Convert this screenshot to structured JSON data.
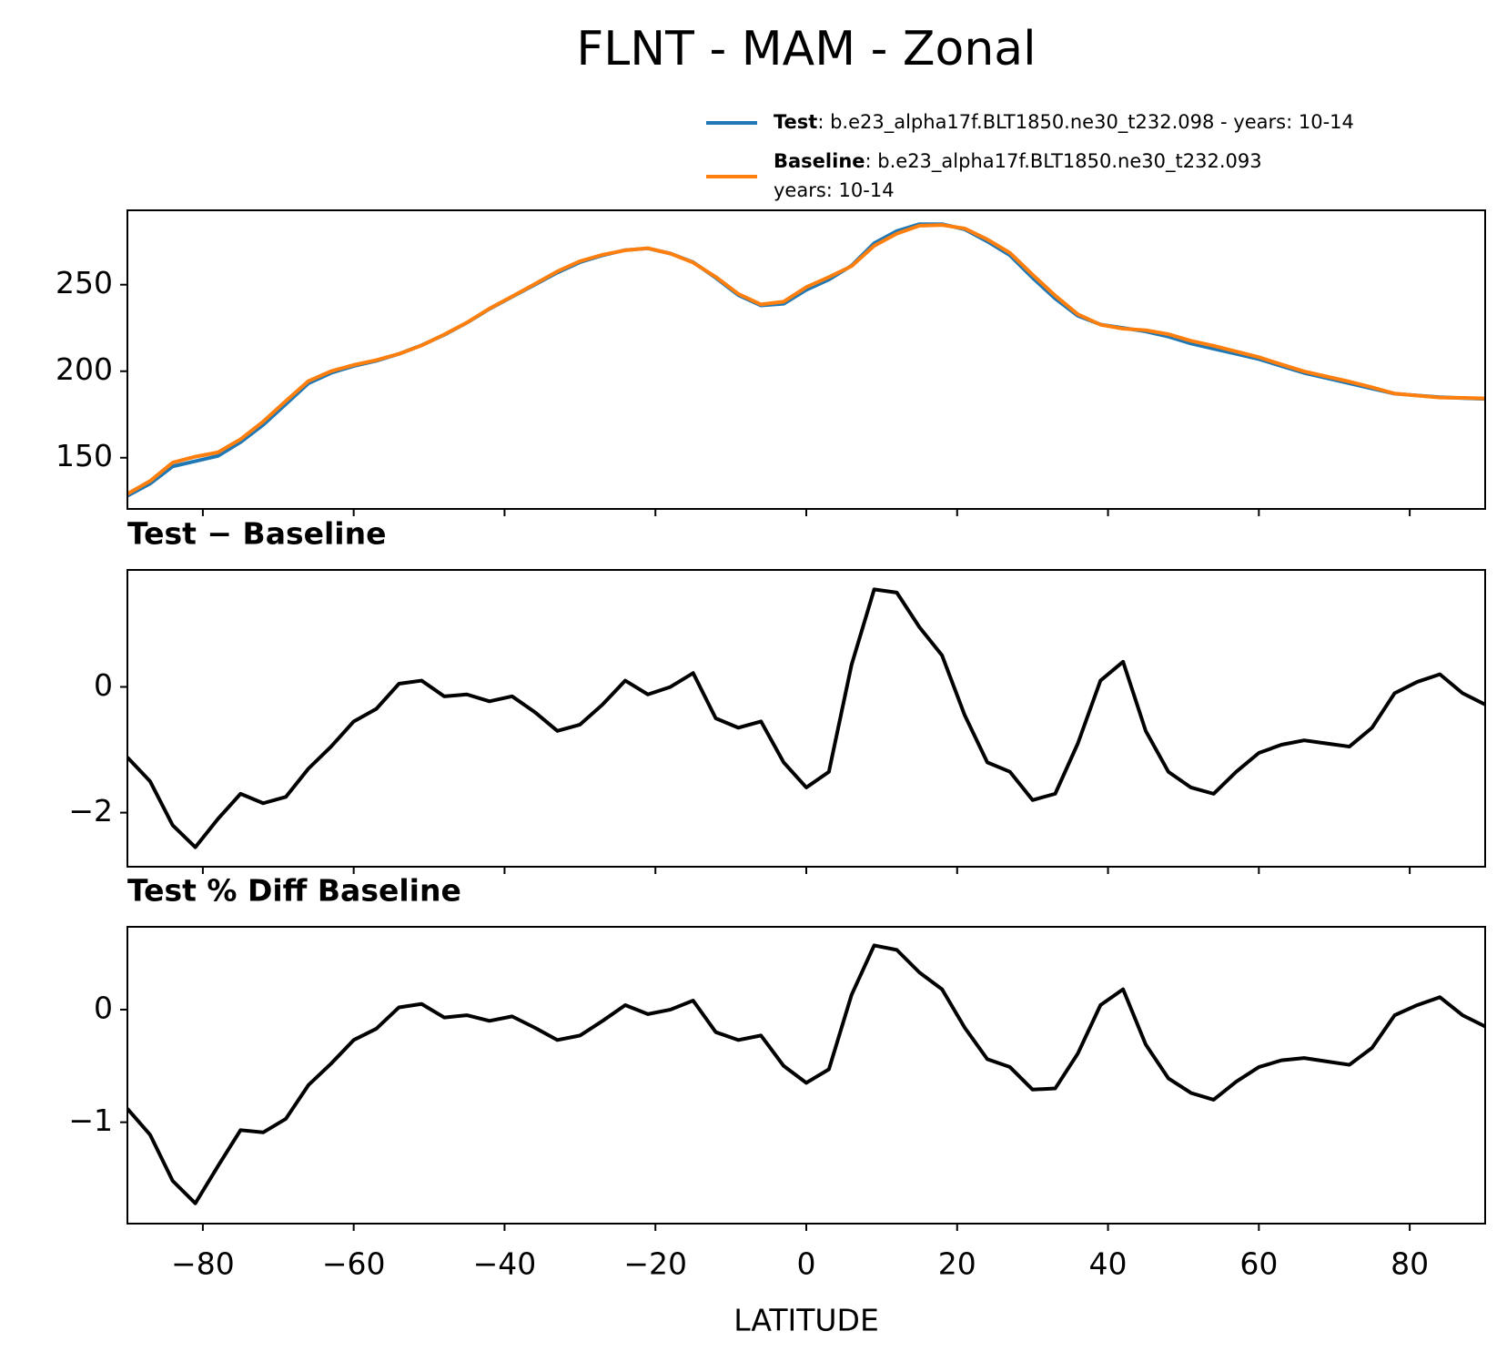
{
  "title": "FLNT - MAM - Zonal",
  "chart_data": [
    {
      "type": "line",
      "x": [
        -90,
        -87,
        -84,
        -81,
        -78,
        -75,
        -72,
        -69,
        -66,
        -63,
        -60,
        -57,
        -54,
        -51,
        -48,
        -45,
        -42,
        -39,
        -36,
        -33,
        -30,
        -27,
        -24,
        -21,
        -18,
        -15,
        -12,
        -9,
        -6,
        -3,
        0,
        3,
        6,
        9,
        12,
        15,
        18,
        21,
        24,
        27,
        30,
        33,
        36,
        39,
        42,
        45,
        48,
        51,
        54,
        57,
        60,
        63,
        66,
        69,
        72,
        75,
        78,
        81,
        84,
        87,
        90
      ],
      "series": [
        {
          "name": "Test",
          "label": ": b.e23_alpha17f.BLT1850.ne30_t232.098 - years: 10-14",
          "color": "#1f77b4",
          "values": [
            128,
            135,
            145,
            148,
            151,
            159,
            169,
            181,
            193,
            199,
            203,
            206,
            210,
            215,
            221,
            228,
            236,
            243,
            250,
            257,
            263,
            267,
            270,
            271,
            268,
            263,
            254,
            244,
            238,
            239,
            247,
            253,
            261,
            274,
            281,
            285,
            285,
            282,
            275,
            267,
            254,
            242,
            232,
            227,
            225,
            223,
            220,
            216,
            213,
            210,
            207,
            203,
            199,
            196,
            193,
            190,
            187,
            186,
            185,
            184.5,
            184
          ]
        },
        {
          "name": "Baseline",
          "label": [
            ": b.e23_alpha17f.BLT1850.ne30_t232.093",
            "years: 10-14"
          ],
          "color": "#ff7f0e",
          "values": [
            129.1,
            136.5,
            147.2,
            150.6,
            153.1,
            160.7,
            170.9,
            182.8,
            194.3,
            200.0,
            203.6,
            206.4,
            210.0,
            214.9,
            221.2,
            228.1,
            236.2,
            243.2,
            250.4,
            257.7,
            263.6,
            267.3,
            269.9,
            271.1,
            268,
            262.8,
            254.5,
            244.7,
            238.6,
            240.2,
            248.6,
            254.4,
            260.7,
            272.5,
            279.5,
            284.1,
            284.5,
            282.5,
            276.2,
            268.4,
            255.8,
            243.7,
            232.9,
            226.9,
            224.6,
            223.7,
            221.4,
            217.6,
            214.7,
            211.4,
            208.1,
            203.9,
            199.9,
            196.9,
            194.0,
            190.7,
            187.1,
            185.9,
            184.8,
            184.6,
            184.3
          ]
        }
      ],
      "xlim": [
        -90,
        90
      ],
      "xticks": [
        -80,
        -60,
        -40,
        -20,
        0,
        20,
        40,
        60,
        80
      ],
      "ylim": [
        120.4,
        293
      ],
      "yticks": [
        150,
        200,
        250
      ]
    },
    {
      "type": "line",
      "title": "Test − Baseline",
      "x": [
        -90,
        -87,
        -84,
        -81,
        -78,
        -75,
        -72,
        -69,
        -66,
        -63,
        -60,
        -57,
        -54,
        -51,
        -48,
        -45,
        -42,
        -39,
        -36,
        -33,
        -30,
        -27,
        -24,
        -21,
        -18,
        -15,
        -12,
        -9,
        -6,
        -3,
        0,
        3,
        6,
        9,
        12,
        15,
        18,
        21,
        24,
        27,
        30,
        33,
        36,
        39,
        42,
        45,
        48,
        51,
        54,
        57,
        60,
        63,
        66,
        69,
        72,
        75,
        78,
        81,
        84,
        87,
        90
      ],
      "series": [
        {
          "color": "#000000",
          "values": [
            -1.12,
            -1.5,
            -2.2,
            -2.55,
            -2.1,
            -1.7,
            -1.85,
            -1.75,
            -1.3,
            -0.95,
            -0.55,
            -0.35,
            0.05,
            0.1,
            -0.15,
            -0.12,
            -0.23,
            -0.15,
            -0.4,
            -0.7,
            -0.6,
            -0.28,
            0.1,
            -0.12,
            0.0,
            0.22,
            -0.5,
            -0.65,
            -0.55,
            -1.2,
            -1.6,
            -1.35,
            0.35,
            1.55,
            1.5,
            0.95,
            0.5,
            -0.45,
            -1.2,
            -1.35,
            -1.8,
            -1.7,
            -0.9,
            0.1,
            0.4,
            -0.7,
            -1.35,
            -1.6,
            -1.7,
            -1.35,
            -1.05,
            -0.92,
            -0.85,
            -0.9,
            -0.95,
            -0.65,
            -0.1,
            0.08,
            0.2,
            -0.1,
            -0.28
          ]
        }
      ],
      "xlim": [
        -90,
        90
      ],
      "xticks": [
        -80,
        -60,
        -40,
        -20,
        0,
        20,
        40,
        60,
        80
      ],
      "ylim": [
        -2.86,
        1.86
      ],
      "yticks": [
        {
          "value": -2,
          "label": "−2"
        },
        0
      ]
    },
    {
      "type": "line",
      "title": "Test % Diff Baseline",
      "xlabel": "LATITUDE",
      "x": [
        -90,
        -87,
        -84,
        -81,
        -78,
        -75,
        -72,
        -69,
        -66,
        -63,
        -60,
        -57,
        -54,
        -51,
        -48,
        -45,
        -42,
        -39,
        -36,
        -33,
        -30,
        -27,
        -24,
        -21,
        -18,
        -15,
        -12,
        -9,
        -6,
        -3,
        0,
        3,
        6,
        9,
        12,
        15,
        18,
        21,
        24,
        27,
        30,
        33,
        36,
        39,
        42,
        45,
        48,
        51,
        54,
        57,
        60,
        63,
        66,
        69,
        72,
        75,
        78,
        81,
        84,
        87,
        90
      ],
      "series": [
        {
          "color": "#000000",
          "values": [
            -0.88,
            -1.11,
            -1.52,
            -1.72,
            -1.39,
            -1.07,
            -1.09,
            -0.97,
            -0.67,
            -0.48,
            -0.27,
            -0.17,
            0.02,
            0.05,
            -0.07,
            -0.05,
            -0.1,
            -0.06,
            -0.16,
            -0.27,
            -0.23,
            -0.1,
            0.04,
            -0.04,
            0.0,
            0.08,
            -0.2,
            -0.27,
            -0.23,
            -0.5,
            -0.65,
            -0.53,
            0.13,
            0.57,
            0.53,
            0.33,
            0.18,
            -0.16,
            -0.44,
            -0.51,
            -0.71,
            -0.7,
            -0.39,
            0.04,
            0.18,
            -0.31,
            -0.61,
            -0.74,
            -0.8,
            -0.64,
            -0.51,
            -0.45,
            -0.43,
            -0.46,
            -0.49,
            -0.34,
            -0.05,
            0.04,
            0.11,
            -0.05,
            -0.15
          ]
        }
      ],
      "xlim": [
        -90,
        90
      ],
      "xticks": [
        {
          "value": -80,
          "label": "−80"
        },
        {
          "value": -60,
          "label": "−60"
        },
        {
          "value": -40,
          "label": "−40"
        },
        {
          "value": -20,
          "label": "−20"
        },
        0,
        20,
        40,
        60,
        80
      ],
      "ylim": [
        -1.9,
        0.735
      ],
      "yticks": [
        {
          "value": -1,
          "label": "−1"
        },
        0
      ]
    }
  ]
}
